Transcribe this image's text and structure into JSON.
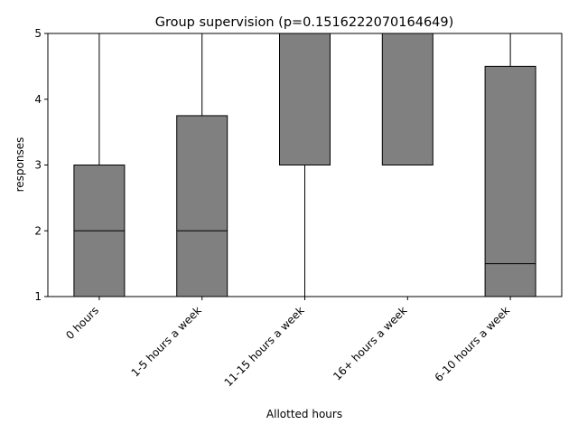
{
  "chart_data": {
    "type": "box",
    "title": "Group supervision (p=0.1516222070164649)",
    "xlabel": "Allotted hours",
    "ylabel": "responses",
    "ylim": [
      1,
      5
    ],
    "yticks": [
      "1",
      "2",
      "3",
      "4",
      "5"
    ],
    "categories": [
      "0 hours",
      "1-5 hours a week",
      "11-15 hours a week",
      "16+ hours a week",
      "6-10 hours a week"
    ],
    "boxes": [
      {
        "whisker_low": 1,
        "q1": 1,
        "median": 2,
        "q3": 3,
        "whisker_high": 5
      },
      {
        "whisker_low": 1,
        "q1": 1,
        "median": 2,
        "q3": 3.75,
        "whisker_high": 5
      },
      {
        "whisker_low": 1,
        "q1": 3,
        "median": 5,
        "q3": 5,
        "whisker_high": 5
      },
      {
        "whisker_low": 3,
        "q1": 3,
        "median": 3,
        "q3": 5,
        "whisker_high": 5
      },
      {
        "whisker_low": 1,
        "q1": 1,
        "median": 1.5,
        "q3": 4.5,
        "whisker_high": 5
      }
    ],
    "box_color": "#808080",
    "line_color": "#000000",
    "grid": false,
    "legend": "none"
  }
}
